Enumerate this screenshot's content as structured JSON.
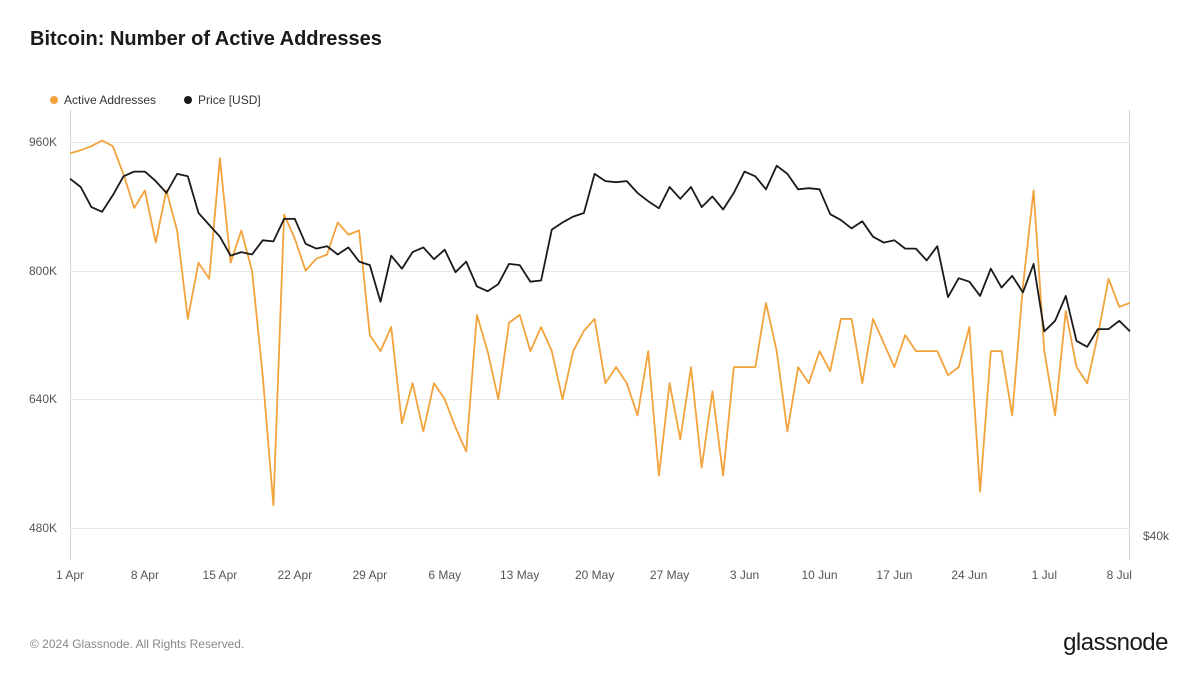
{
  "title": "Bitcoin: Number of Active Addresses",
  "legend": {
    "series1": {
      "label": "Active Addresses",
      "color": "#f2a33c"
    },
    "series2": {
      "label": "Price [USD]",
      "color": "#1a1a1a"
    }
  },
  "copyright": "© 2024 Glassnode. All Rights Reserved.",
  "brand": "glassnode",
  "chart": {
    "type": "line",
    "background_color": "#ffffff",
    "grid_color": "#e8e8e8",
    "axis_color": "#d0d0d0",
    "text_color": "#555555",
    "title_fontsize": 20,
    "label_fontsize": 12,
    "line_width_addresses": 1.8,
    "line_width_price": 1.8,
    "x": {
      "min": 0,
      "max": 99,
      "ticks": [
        {
          "pos": 0,
          "label": "1 Apr"
        },
        {
          "pos": 7,
          "label": "8 Apr"
        },
        {
          "pos": 14,
          "label": "15 Apr"
        },
        {
          "pos": 21,
          "label": "22 Apr"
        },
        {
          "pos": 28,
          "label": "29 Apr"
        },
        {
          "pos": 35,
          "label": "6 May"
        },
        {
          "pos": 42,
          "label": "13 May"
        },
        {
          "pos": 49,
          "label": "20 May"
        },
        {
          "pos": 56,
          "label": "27 May"
        },
        {
          "pos": 63,
          "label": "3 Jun"
        },
        {
          "pos": 70,
          "label": "10 Jun"
        },
        {
          "pos": 77,
          "label": "17 Jun"
        },
        {
          "pos": 84,
          "label": "24 Jun"
        },
        {
          "pos": 91,
          "label": "1 Jul"
        },
        {
          "pos": 98,
          "label": "8 Jul"
        }
      ]
    },
    "y_left": {
      "min": 440000,
      "max": 1000000,
      "ticks": [
        {
          "value": 480000,
          "label": "480K"
        },
        {
          "value": 640000,
          "label": "640K"
        },
        {
          "value": 800000,
          "label": "800K"
        },
        {
          "value": 960000,
          "label": "960K"
        }
      ]
    },
    "y_right": {
      "min": 38000,
      "max": 76000,
      "ticks": [
        {
          "value": 40000,
          "label": "$40k"
        }
      ]
    },
    "series_addresses": {
      "color": "#f2a33c",
      "values": [
        946000,
        950000,
        955000,
        962000,
        955000,
        920000,
        878000,
        900000,
        835000,
        900000,
        850000,
        740000,
        810000,
        790000,
        940000,
        810000,
        850000,
        800000,
        670000,
        508000,
        870000,
        840000,
        800000,
        815000,
        820000,
        860000,
        845000,
        850000,
        720000,
        700000,
        730000,
        610000,
        660000,
        600000,
        660000,
        640000,
        605000,
        575000,
        745000,
        700000,
        640000,
        735000,
        745000,
        700000,
        730000,
        700000,
        640000,
        700000,
        725000,
        740000,
        660000,
        680000,
        660000,
        620000,
        700000,
        545000,
        660000,
        590000,
        680000,
        555000,
        650000,
        545000,
        680000,
        680000,
        680000,
        760000,
        700000,
        600000,
        680000,
        660000,
        700000,
        675000,
        740000,
        740000,
        660000,
        740000,
        710000,
        680000,
        720000,
        700000,
        700000,
        700000,
        670000,
        680000,
        730000,
        525000,
        700000,
        700000,
        620000,
        780000,
        900000,
        700000,
        620000,
        750000,
        680000,
        660000,
        720000,
        790000,
        755000,
        760000
      ]
    },
    "series_price": {
      "color": "#1a1a1a",
      "values": [
        70200,
        69500,
        67800,
        67400,
        68800,
        70400,
        70800,
        70800,
        70000,
        69000,
        70600,
        70400,
        67300,
        66300,
        65300,
        63700,
        64000,
        63800,
        65000,
        64900,
        66800,
        66800,
        64700,
        64300,
        64500,
        63800,
        64400,
        63200,
        62900,
        59800,
        63700,
        62600,
        64000,
        64400,
        63400,
        64200,
        62300,
        63200,
        61100,
        60700,
        61300,
        63000,
        62900,
        61500,
        61600,
        65900,
        66500,
        67000,
        67300,
        70600,
        70000,
        69900,
        70000,
        69000,
        68300,
        67700,
        69500,
        68500,
        69500,
        67800,
        68700,
        67600,
        69000,
        70800,
        70400,
        69300,
        71300,
        70600,
        69300,
        69400,
        69300,
        67200,
        66700,
        66000,
        66600,
        65300,
        64800,
        65000,
        64300,
        64300,
        63300,
        64500,
        60200,
        61800,
        61500,
        60300,
        62600,
        61000,
        62000,
        60600,
        63000,
        57300,
        58200,
        60300,
        56500,
        56000,
        57500,
        57500,
        58200,
        57300
      ]
    }
  }
}
